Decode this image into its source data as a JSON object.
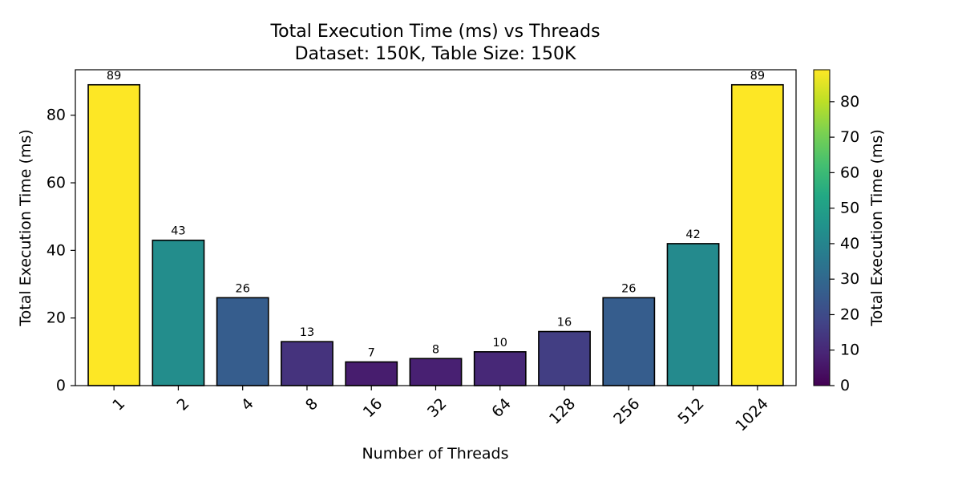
{
  "chart_data": {
    "type": "bar",
    "title": "Total Execution Time (ms) vs Threads",
    "subtitle": "Dataset: 150K, Table Size: 150K",
    "xlabel": "Number of Threads",
    "ylabel": "Total Execution Time (ms)",
    "categories": [
      "1",
      "2",
      "4",
      "8",
      "16",
      "32",
      "64",
      "128",
      "256",
      "512",
      "1024"
    ],
    "values": [
      89,
      43,
      26,
      13,
      7,
      8,
      10,
      16,
      26,
      42,
      89
    ],
    "data_labels": [
      "89",
      "43",
      "26",
      "13",
      "7",
      "8",
      "10",
      "16",
      "26",
      "42",
      "89"
    ],
    "ylim": [
      0,
      93.45
    ],
    "yticks": [
      0,
      20,
      40,
      60,
      80
    ],
    "ytick_labels": [
      "0",
      "20",
      "40",
      "60",
      "80"
    ],
    "grid": false,
    "colormap": "viridis",
    "colorbar": {
      "label": "Total Execution Time (ms)",
      "range": [
        0,
        89
      ],
      "ticks": [
        0,
        10,
        20,
        30,
        40,
        50,
        60,
        70,
        80
      ],
      "tick_labels": [
        "0",
        "10",
        "20",
        "30",
        "40",
        "50",
        "60",
        "70",
        "80"
      ]
    },
    "bar_edge_color": "#000000",
    "x_tick_rotation_deg": 45
  }
}
